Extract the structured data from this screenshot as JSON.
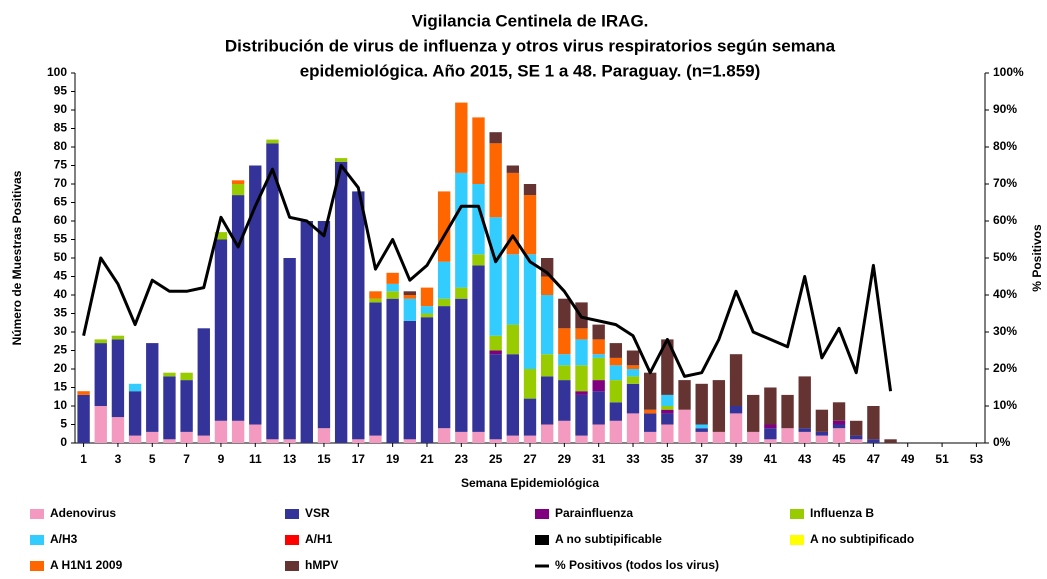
{
  "chart_data": {
    "type": "bar",
    "title": [
      "Vigilancia Centinela de IRAG.",
      "Distribución de virus de influenza y otros virus respiratorios según semana",
      "epidemiológica. Año 2015, SE 1 a 48. Paraguay. (n=1.859)"
    ],
    "ylabel": "Número de Muestras Positivas",
    "y2label": "% Positivos",
    "xlabel": "Semana Epidemiológica",
    "stacked": true,
    "x": [
      1,
      2,
      3,
      4,
      5,
      6,
      7,
      8,
      9,
      10,
      11,
      12,
      13,
      14,
      15,
      16,
      17,
      18,
      19,
      20,
      21,
      22,
      23,
      24,
      25,
      26,
      27,
      28,
      29,
      30,
      31,
      32,
      33,
      34,
      35,
      36,
      37,
      38,
      39,
      40,
      41,
      42,
      43,
      44,
      45,
      46,
      47,
      48,
      49,
      50,
      51,
      52,
      53
    ],
    "xlim": [
      0.5,
      53.5
    ],
    "xticks": [
      1,
      3,
      5,
      7,
      9,
      11,
      13,
      15,
      17,
      19,
      21,
      23,
      25,
      27,
      29,
      31,
      33,
      35,
      37,
      39,
      41,
      43,
      45,
      47,
      49,
      51,
      53
    ],
    "ylim": [
      0,
      100
    ],
    "yticks": [
      0,
      5,
      10,
      15,
      20,
      25,
      30,
      35,
      40,
      45,
      50,
      55,
      60,
      65,
      70,
      75,
      80,
      85,
      90,
      95,
      100
    ],
    "y2lim": [
      0,
      100
    ],
    "y2ticks": [
      {
        "value": 0,
        "label": "0%"
      },
      {
        "value": 10,
        "label": "10%"
      },
      {
        "value": 20,
        "label": "20%"
      },
      {
        "value": 30,
        "label": "30%"
      },
      {
        "value": 40,
        "label": "40%"
      },
      {
        "value": 50,
        "label": "50%"
      },
      {
        "value": 60,
        "label": "60%"
      },
      {
        "value": 70,
        "label": "70%"
      },
      {
        "value": 80,
        "label": "80%"
      },
      {
        "value": 90,
        "label": "90%"
      },
      {
        "value": 100,
        "label": "100%"
      }
    ],
    "series": [
      {
        "name": "Adenovirus",
        "color": "#f49ac1",
        "values": [
          0,
          10,
          7,
          2,
          3,
          1,
          3,
          2,
          6,
          6,
          5,
          1,
          1,
          0,
          4,
          0,
          1,
          2,
          0,
          1,
          0,
          4,
          3,
          3,
          1,
          2,
          2,
          5,
          6,
          2,
          5,
          6,
          8,
          3,
          5,
          9,
          3,
          3,
          8,
          3,
          1,
          4,
          3,
          2,
          4,
          1,
          0,
          0,
          null,
          null,
          null,
          null,
          null
        ]
      },
      {
        "name": "VSR",
        "color": "#333399",
        "values": [
          13,
          17,
          21,
          12,
          24,
          17,
          14,
          29,
          49,
          61,
          70,
          80,
          49,
          60,
          56,
          76,
          67,
          36,
          39,
          32,
          34,
          33,
          36,
          45,
          23,
          22,
          10,
          13,
          11,
          11,
          9,
          5,
          8,
          5,
          3,
          0,
          1,
          0,
          2,
          0,
          3,
          0,
          1,
          1,
          1,
          1,
          1,
          0,
          null,
          null,
          null,
          null,
          null
        ]
      },
      {
        "name": "Parainfluenza",
        "color": "#800080",
        "values": [
          0,
          0,
          0,
          0,
          0,
          0,
          0,
          0,
          0,
          0,
          0,
          0,
          0,
          0,
          0,
          0,
          0,
          0,
          0,
          0,
          0,
          0,
          0,
          0,
          1,
          0,
          0,
          0,
          0,
          1,
          3,
          0,
          0,
          0,
          1,
          0,
          0,
          0,
          0,
          0,
          1,
          0,
          0,
          0,
          1,
          0,
          0,
          0,
          null,
          null,
          null,
          null,
          null
        ]
      },
      {
        "name": "Influenza  B",
        "color": "#99cc00",
        "values": [
          0,
          1,
          1,
          0,
          0,
          1,
          2,
          0,
          2,
          3,
          0,
          1,
          0,
          0,
          0,
          1,
          0,
          1,
          2,
          0,
          1,
          2,
          3,
          3,
          4,
          8,
          8,
          6,
          4,
          7,
          6,
          6,
          2,
          0,
          1,
          0,
          0,
          0,
          0,
          0,
          0,
          0,
          0,
          0,
          0,
          0,
          0,
          0,
          null,
          null,
          null,
          null,
          null
        ]
      },
      {
        "name": "A/H3",
        "color": "#33ccff",
        "values": [
          0,
          0,
          0,
          2,
          0,
          0,
          0,
          0,
          0,
          0,
          0,
          0,
          0,
          0,
          0,
          0,
          0,
          0,
          2,
          6,
          2,
          10,
          31,
          19,
          32,
          19,
          31,
          16,
          3,
          7,
          1,
          4,
          2,
          0,
          3,
          0,
          1,
          0,
          0,
          0,
          0,
          0,
          0,
          0,
          0,
          0,
          0,
          0,
          null,
          null,
          null,
          null,
          null
        ]
      },
      {
        "name": "A/H1",
        "color": "#ff0000",
        "values": [
          0,
          0,
          0,
          0,
          0,
          0,
          0,
          0,
          0,
          0,
          0,
          0,
          0,
          0,
          0,
          0,
          0,
          0,
          0,
          0,
          0,
          0,
          0,
          0,
          0,
          0,
          0,
          0,
          0,
          0,
          0,
          0,
          0,
          0,
          0,
          0,
          0,
          0,
          0,
          0,
          0,
          0,
          0,
          0,
          0,
          0,
          0,
          0,
          null,
          null,
          null,
          null,
          null
        ]
      },
      {
        "name": "A no subtipificable",
        "color": "#000000",
        "values": [
          0,
          0,
          0,
          0,
          0,
          0,
          0,
          0,
          0,
          0,
          0,
          0,
          0,
          0,
          0,
          0,
          0,
          0,
          0,
          0,
          0,
          0,
          0,
          0,
          0,
          0,
          0,
          0,
          0,
          0,
          0,
          0,
          0,
          0,
          0,
          0,
          0,
          0,
          0,
          0,
          0,
          0,
          0,
          0,
          0,
          0,
          0,
          0,
          null,
          null,
          null,
          null,
          null
        ]
      },
      {
        "name": "A no subtipificado",
        "color": "#ffff00",
        "values": [
          0,
          0,
          0,
          0,
          0,
          0,
          0,
          0,
          0,
          0,
          0,
          0,
          0,
          0,
          0,
          0,
          0,
          0,
          0,
          0,
          0,
          0,
          0,
          0,
          0,
          0,
          0,
          0,
          0,
          0,
          0,
          0,
          0,
          0,
          0,
          0,
          0,
          0,
          0,
          0,
          0,
          0,
          0,
          0,
          0,
          0,
          0,
          0,
          null,
          null,
          null,
          null,
          null
        ]
      },
      {
        "name": "A H1N1 2009",
        "color": "#ff6600",
        "values": [
          1,
          0,
          0,
          0,
          0,
          0,
          0,
          0,
          0,
          1,
          0,
          0,
          0,
          0,
          0,
          0,
          0,
          2,
          3,
          1,
          5,
          19,
          19,
          18,
          20,
          22,
          16,
          5,
          7,
          3,
          4,
          2,
          1,
          1,
          0,
          0,
          0,
          0,
          0,
          0,
          0,
          0,
          0,
          0,
          0,
          0,
          0,
          0,
          null,
          null,
          null,
          null,
          null
        ]
      },
      {
        "name": "hMPV",
        "color": "#663333",
        "values": [
          0,
          0,
          0,
          0,
          0,
          0,
          0,
          0,
          0,
          0,
          0,
          0,
          0,
          0,
          0,
          0,
          0,
          0,
          0,
          1,
          0,
          0,
          0,
          0,
          3,
          2,
          3,
          5,
          8,
          7,
          4,
          4,
          4,
          10,
          15,
          8,
          11,
          14,
          14,
          10,
          10,
          9,
          14,
          6,
          5,
          4,
          9,
          1,
          null,
          null,
          null,
          null,
          null
        ]
      },
      {
        "name": "% Positivos (todos los virus)",
        "color": "#000000",
        "type": "line",
        "axis": "y2",
        "values": [
          29,
          50,
          43,
          32,
          44,
          41,
          41,
          42,
          61,
          53,
          64,
          74,
          61,
          60,
          56,
          75,
          69,
          47,
          55,
          44,
          48,
          56,
          64,
          64,
          49,
          56,
          49,
          46,
          41,
          34,
          33,
          32,
          29,
          19,
          28,
          18,
          19,
          28,
          41,
          30,
          28,
          26,
          45,
          23,
          31,
          19,
          48,
          14,
          null,
          null,
          null,
          null,
          null
        ]
      }
    ]
  }
}
